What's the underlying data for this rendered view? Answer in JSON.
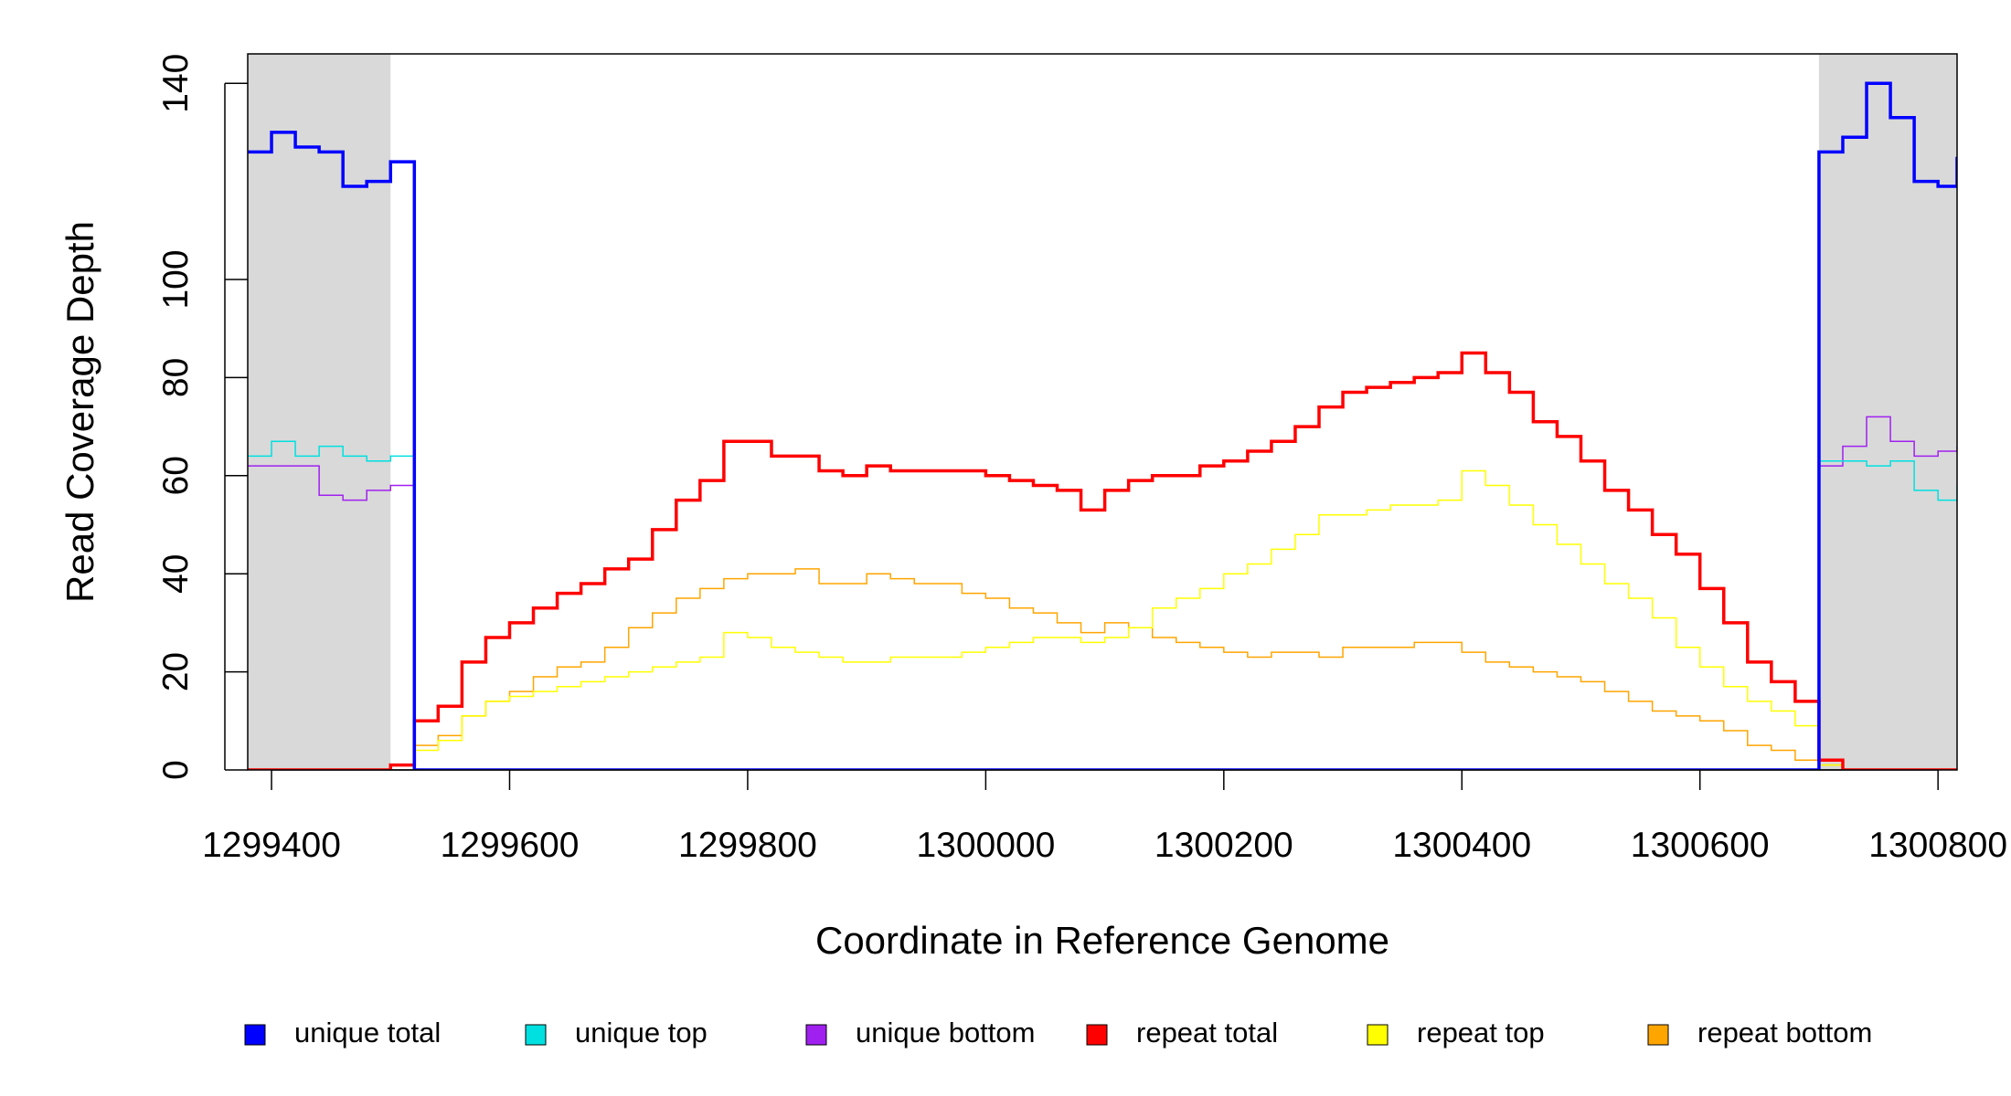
{
  "chart_data": {
    "type": "line",
    "drawstyle": "steps",
    "x_label": "Coordinate in Reference Genome",
    "y_label": "Read Coverage Depth",
    "xlim": [
      1299380,
      1300816
    ],
    "ylim": [
      0,
      146
    ],
    "xticks": [
      1299400,
      1299600,
      1299800,
      1300000,
      1300200,
      1300400,
      1300600,
      1300800
    ],
    "yticks": [
      0,
      20,
      40,
      60,
      80,
      100,
      140
    ],
    "shaded_regions": [
      [
        1299380,
        1299500
      ],
      [
        1300700,
        1300816
      ]
    ],
    "shade_color": "#d9d9d9",
    "legend": "bottom",
    "x": [
      1299380,
      1299400,
      1299420,
      1299440,
      1299460,
      1299480,
      1299500,
      1299520,
      1299540,
      1299560,
      1299580,
      1299600,
      1299620,
      1299640,
      1299660,
      1299680,
      1299700,
      1299720,
      1299740,
      1299760,
      1299780,
      1299800,
      1299820,
      1299840,
      1299860,
      1299880,
      1299900,
      1299920,
      1299940,
      1299960,
      1299980,
      1300000,
      1300020,
      1300040,
      1300060,
      1300080,
      1300100,
      1300120,
      1300140,
      1300160,
      1300180,
      1300200,
      1300220,
      1300240,
      1300260,
      1300280,
      1300300,
      1300320,
      1300340,
      1300360,
      1300380,
      1300400,
      1300420,
      1300440,
      1300460,
      1300480,
      1300500,
      1300520,
      1300540,
      1300560,
      1300580,
      1300600,
      1300620,
      1300640,
      1300660,
      1300680,
      1300700,
      1300720,
      1300740,
      1300760,
      1300780,
      1300800,
      1300816
    ],
    "series": [
      {
        "name": "unique total",
        "color": "#0000ff",
        "width": 3.5,
        "values": [
          126,
          130,
          127,
          126,
          119,
          120,
          124,
          0,
          0,
          0,
          0,
          0,
          0,
          0,
          0,
          0,
          0,
          0,
          0,
          0,
          0,
          0,
          0,
          0,
          0,
          0,
          0,
          0,
          0,
          0,
          0,
          0,
          0,
          0,
          0,
          0,
          0,
          0,
          0,
          0,
          0,
          0,
          0,
          0,
          0,
          0,
          0,
          0,
          0,
          0,
          0,
          0,
          0,
          0,
          0,
          0,
          0,
          0,
          0,
          0,
          0,
          0,
          0,
          0,
          0,
          0,
          126,
          129,
          140,
          133,
          120,
          119,
          125
        ]
      },
      {
        "name": "unique top",
        "color": "#00e0e0",
        "width": 1.5,
        "values": [
          64,
          67,
          64,
          66,
          64,
          63,
          64,
          0,
          0,
          0,
          0,
          0,
          0,
          0,
          0,
          0,
          0,
          0,
          0,
          0,
          0,
          0,
          0,
          0,
          0,
          0,
          0,
          0,
          0,
          0,
          0,
          0,
          0,
          0,
          0,
          0,
          0,
          0,
          0,
          0,
          0,
          0,
          0,
          0,
          0,
          0,
          0,
          0,
          0,
          0,
          0,
          0,
          0,
          0,
          0,
          0,
          0,
          0,
          0,
          0,
          0,
          0,
          0,
          0,
          0,
          0,
          63,
          63,
          62,
          63,
          57,
          55,
          58
        ]
      },
      {
        "name": "unique bottom",
        "color": "#a020f0",
        "width": 1.5,
        "values": [
          62,
          62,
          62,
          56,
          55,
          57,
          58,
          0,
          0,
          0,
          0,
          0,
          0,
          0,
          0,
          0,
          0,
          0,
          0,
          0,
          0,
          0,
          0,
          0,
          0,
          0,
          0,
          0,
          0,
          0,
          0,
          0,
          0,
          0,
          0,
          0,
          0,
          0,
          0,
          0,
          0,
          0,
          0,
          0,
          0,
          0,
          0,
          0,
          0,
          0,
          0,
          0,
          0,
          0,
          0,
          0,
          0,
          0,
          0,
          0,
          0,
          0,
          0,
          0,
          0,
          0,
          62,
          66,
          72,
          67,
          64,
          65,
          66
        ]
      },
      {
        "name": "repeat total",
        "color": "#ff0000",
        "width": 3.5,
        "values": [
          0,
          0,
          0,
          0,
          0,
          0,
          1,
          10,
          13,
          22,
          27,
          30,
          33,
          36,
          38,
          41,
          43,
          49,
          55,
          59,
          67,
          67,
          64,
          64,
          61,
          60,
          62,
          61,
          61,
          61,
          61,
          60,
          59,
          58,
          57,
          53,
          57,
          59,
          60,
          60,
          62,
          63,
          65,
          67,
          70,
          74,
          77,
          78,
          79,
          80,
          81,
          85,
          81,
          77,
          71,
          68,
          63,
          57,
          53,
          48,
          44,
          37,
          30,
          22,
          18,
          14,
          2,
          0,
          0,
          0,
          0,
          0,
          0
        ]
      },
      {
        "name": "repeat top",
        "color": "#ffff00",
        "width": 1.5,
        "values": [
          0,
          0,
          0,
          0,
          0,
          0,
          1,
          4,
          6,
          11,
          14,
          15,
          16,
          17,
          18,
          19,
          20,
          21,
          22,
          23,
          28,
          27,
          25,
          24,
          23,
          22,
          22,
          23,
          23,
          23,
          24,
          25,
          26,
          27,
          27,
          26,
          27,
          29,
          33,
          35,
          37,
          40,
          42,
          45,
          48,
          52,
          52,
          53,
          54,
          54,
          55,
          61,
          58,
          54,
          50,
          46,
          42,
          38,
          35,
          31,
          25,
          21,
          17,
          14,
          12,
          9,
          1,
          0,
          0,
          0,
          0,
          0,
          0
        ]
      },
      {
        "name": "repeat bottom",
        "color": "#ffa500",
        "width": 1.5,
        "values": [
          0,
          0,
          0,
          0,
          0,
          0,
          1,
          5,
          7,
          11,
          14,
          16,
          19,
          21,
          22,
          25,
          29,
          32,
          35,
          37,
          39,
          40,
          40,
          41,
          38,
          38,
          40,
          39,
          38,
          38,
          36,
          35,
          33,
          32,
          30,
          28,
          30,
          29,
          27,
          26,
          25,
          24,
          23,
          24,
          24,
          23,
          25,
          25,
          25,
          26,
          26,
          24,
          22,
          21,
          20,
          19,
          18,
          16,
          14,
          12,
          11,
          10,
          8,
          5,
          4,
          2,
          1,
          0,
          0,
          0,
          0,
          0,
          0
        ]
      }
    ]
  }
}
